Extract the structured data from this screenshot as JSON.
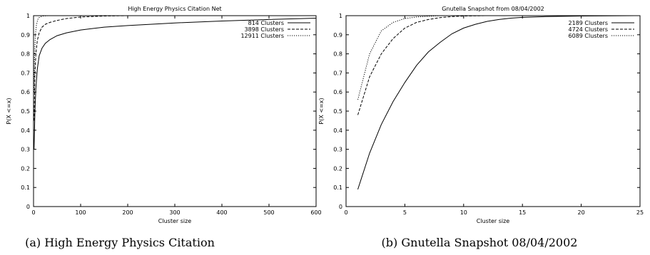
{
  "chart_data": [
    {
      "type": "line",
      "title": "High Energy Physics Citation Net",
      "xlabel": "Cluster size",
      "ylabel": "P(X <=x)",
      "xlim": [
        0,
        600
      ],
      "ylim": [
        0,
        1
      ],
      "xticks": [
        "0",
        "100",
        "200",
        "300",
        "400",
        "500",
        "600"
      ],
      "yticks": [
        "0",
        "0.1",
        "0.2",
        "0.3",
        "0.4",
        "0.5",
        "0.6",
        "0.7",
        "0.8",
        "0.9",
        "1"
      ],
      "legend_position": "top-right",
      "grid": false,
      "caption": "(a) High Energy Physics Citation",
      "series": [
        {
          "name": "814 Clusters",
          "style": "solid",
          "x": [
            1,
            3,
            5,
            8,
            12,
            18,
            25,
            35,
            50,
            70,
            100,
            150,
            200,
            300,
            400,
            500,
            600
          ],
          "y": [
            0.3,
            0.5,
            0.62,
            0.72,
            0.79,
            0.83,
            0.855,
            0.875,
            0.895,
            0.91,
            0.925,
            0.94,
            0.948,
            0.962,
            0.972,
            0.98,
            0.987
          ]
        },
        {
          "name": "3898 Clusters",
          "style": "dashed",
          "x": [
            1,
            3,
            5,
            8,
            12,
            18,
            25,
            35,
            50,
            70,
            100,
            150,
            200
          ],
          "y": [
            0.45,
            0.7,
            0.8,
            0.87,
            0.91,
            0.94,
            0.955,
            0.965,
            0.975,
            0.985,
            0.993,
            0.998,
            1.0
          ]
        },
        {
          "name": "12911 Clusters",
          "style": "dotted",
          "x": [
            1,
            2,
            4,
            6,
            9,
            12,
            16,
            20,
            30,
            50
          ],
          "y": [
            0.6,
            0.78,
            0.9,
            0.95,
            0.98,
            0.99,
            0.995,
            0.998,
            1.0,
            1.0
          ]
        }
      ]
    },
    {
      "type": "line",
      "title": "Gnutella Snapshot from 08/04/2002",
      "xlabel": "Cluster size",
      "ylabel": "P(X <=x)",
      "xlim": [
        0,
        25
      ],
      "ylim": [
        0,
        1
      ],
      "xticks": [
        "0",
        "5",
        "10",
        "15",
        "20",
        "25"
      ],
      "yticks": [
        "0",
        "0.1",
        "0.2",
        "0.3",
        "0.4",
        "0.5",
        "0.6",
        "0.7",
        "0.8",
        "0.9",
        "1"
      ],
      "legend_position": "top-right",
      "grid": false,
      "caption": "(b) Gnutella Snapshot 08/04/2002",
      "series": [
        {
          "name": "2189 Clusters",
          "style": "solid",
          "x": [
            1,
            2,
            3,
            4,
            5,
            6,
            7,
            8,
            9,
            10,
            11,
            12,
            13,
            14,
            15,
            17,
            20,
            25
          ],
          "y": [
            0.09,
            0.28,
            0.43,
            0.55,
            0.65,
            0.74,
            0.81,
            0.86,
            0.905,
            0.935,
            0.955,
            0.97,
            0.98,
            0.987,
            0.991,
            0.995,
            0.998,
            1.0
          ]
        },
        {
          "name": "4724 Clusters",
          "style": "dashed",
          "x": [
            1,
            2,
            3,
            4,
            5,
            6,
            7,
            8,
            9,
            10,
            12,
            15
          ],
          "y": [
            0.48,
            0.68,
            0.8,
            0.88,
            0.935,
            0.965,
            0.98,
            0.99,
            0.995,
            0.998,
            1.0,
            1.0
          ]
        },
        {
          "name": "6089 Clusters",
          "style": "dotted",
          "x": [
            1,
            2,
            3,
            4,
            5,
            6,
            7,
            8,
            10
          ],
          "y": [
            0.56,
            0.8,
            0.92,
            0.965,
            0.985,
            0.993,
            0.997,
            1.0,
            1.0
          ]
        }
      ]
    }
  ]
}
